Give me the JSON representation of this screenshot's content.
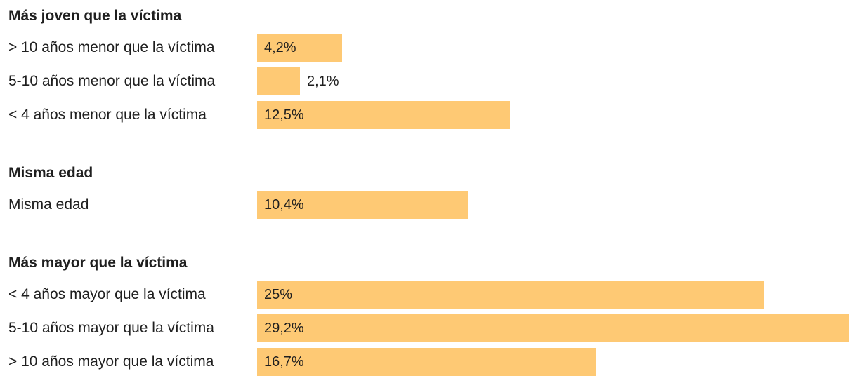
{
  "chart_data": {
    "type": "bar",
    "orientation": "horizontal",
    "bar_color": "#fec974",
    "xlim": [
      0,
      29.2
    ],
    "groups": [
      {
        "title": "Más joven que la víctima",
        "rows": [
          {
            "label": "> 10 años menor que la víctima",
            "value": 4.2,
            "value_label": "4,2%"
          },
          {
            "label": "5-10 años menor que la víctima",
            "value": 2.1,
            "value_label": "2,1%"
          },
          {
            "label": "< 4 años menor que la víctima",
            "value": 12.5,
            "value_label": "12,5%"
          }
        ]
      },
      {
        "title": "Misma edad",
        "rows": [
          {
            "label": "Misma edad",
            "value": 10.4,
            "value_label": "10,4%"
          }
        ]
      },
      {
        "title": "Más mayor que la víctima",
        "rows": [
          {
            "label": "< 4 años mayor que la víctima",
            "value": 25,
            "value_label": "25%"
          },
          {
            "label": "5-10 años mayor que la víctima",
            "value": 29.2,
            "value_label": "29,2%"
          },
          {
            "label": "> 10 años mayor que la víctima",
            "value": 16.7,
            "value_label": "16,7%"
          }
        ]
      }
    ]
  }
}
